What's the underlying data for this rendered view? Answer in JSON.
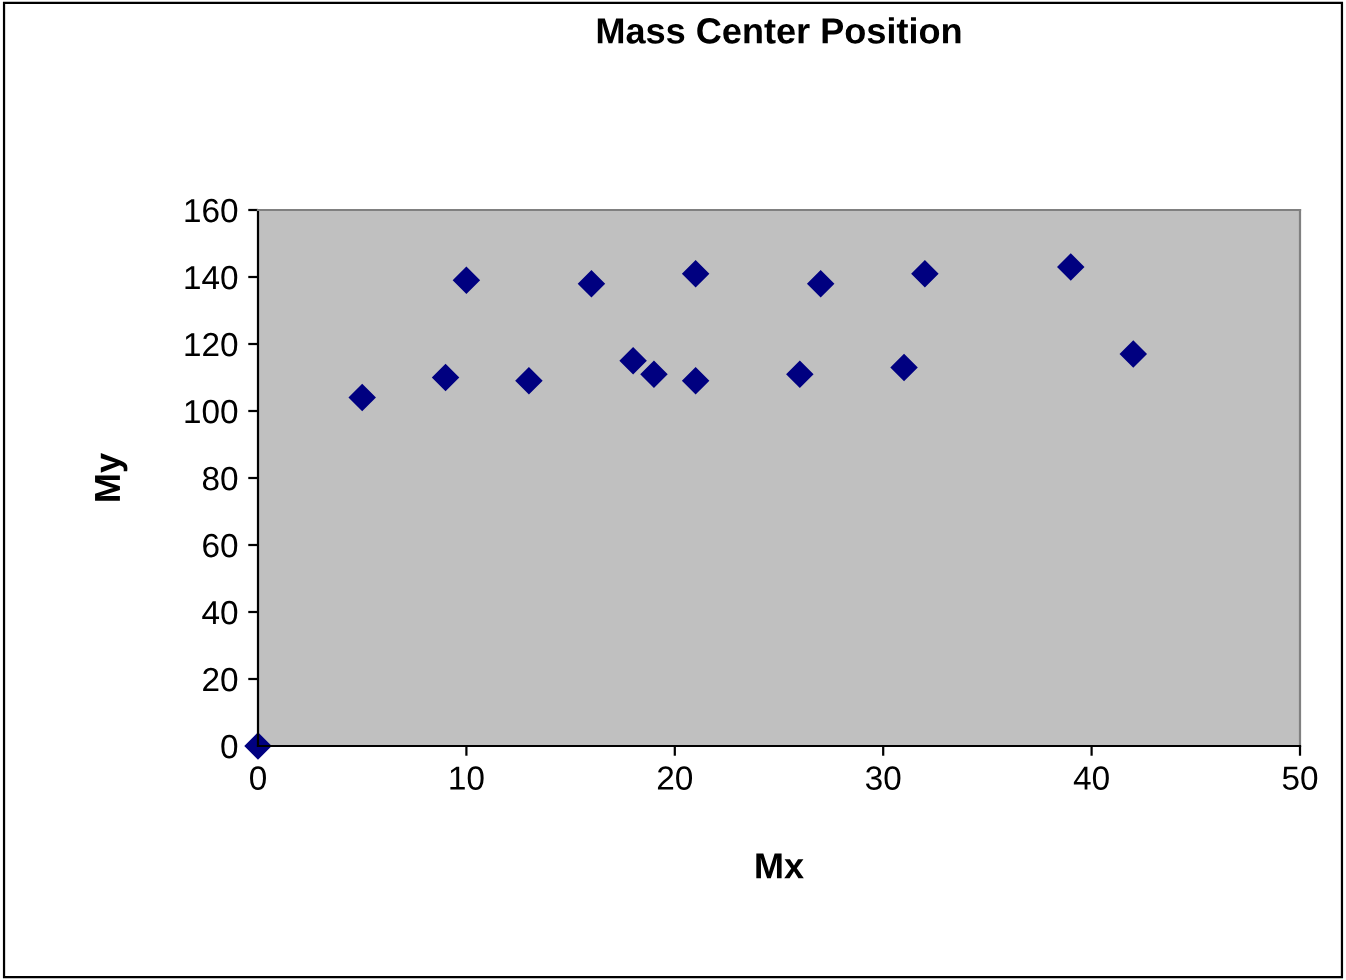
{
  "chart_data": {
    "type": "scatter",
    "title": "Mass Center Position",
    "xlabel": "Mx",
    "ylabel": "My",
    "x": [
      0,
      5,
      9,
      10,
      13,
      16,
      18,
      19,
      21,
      21,
      26,
      27,
      31,
      32,
      39,
      42
    ],
    "values": [
      0,
      104,
      110,
      139,
      109,
      138,
      115,
      111,
      141,
      109,
      111,
      138,
      113,
      141,
      143,
      117
    ],
    "color": "#000080",
    "marker": "diamond",
    "xlim": [
      0,
      50
    ],
    "xticks": [
      0,
      10,
      20,
      30,
      40,
      50
    ],
    "ylim": [
      0,
      160
    ],
    "yticks": [
      0,
      20,
      40,
      60,
      80,
      100,
      120,
      140,
      160
    ],
    "grid": false,
    "legend": false
  }
}
